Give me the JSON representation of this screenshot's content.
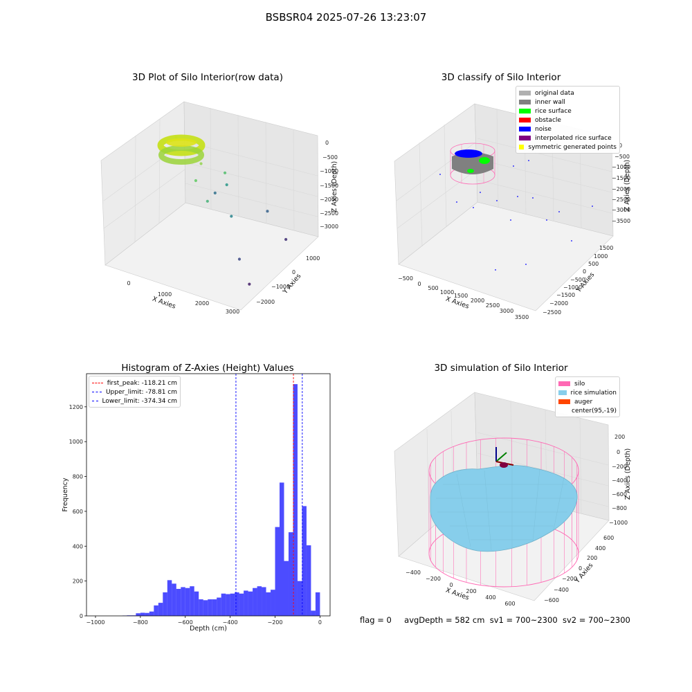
{
  "suptitle": "BSBSR04 2025-07-26 13:23:07",
  "panels": {
    "raw": {
      "title": "3D Plot of Silo Interior(row data)",
      "xlabel": "X Axies",
      "ylabel": "Y Axies",
      "zlabel": "Z Axies (Depth)",
      "xticks": [
        "0",
        "1000",
        "2000",
        "3000"
      ],
      "yticks": [
        "1000",
        "0",
        "−1000",
        "−2000"
      ],
      "zticks": [
        "0",
        "−500",
        "−1000",
        "−1500",
        "−2000",
        "−2500",
        "−3000"
      ]
    },
    "classify": {
      "title": "3D classify of Silo Interior",
      "xlabel": "X Axies",
      "ylabel": "Y Axies",
      "zlabel": "Z Axies (Depth)",
      "xticks": [
        "−500",
        "0",
        "500",
        "1000",
        "1500",
        "2000",
        "2500",
        "3000",
        "3500"
      ],
      "yticks": [
        "1500",
        "1000",
        "500",
        "0",
        "−500",
        "−1000",
        "−1500",
        "−2000",
        "−2500"
      ],
      "zticks": [
        "0",
        "−500",
        "−1000",
        "−1500",
        "−2000",
        "−2500",
        "−3000",
        "−3500"
      ],
      "legend": [
        {
          "label": "original data",
          "color": "#b0b0b0"
        },
        {
          "label": "inner wall",
          "color": "#808080"
        },
        {
          "label": "rice surface",
          "color": "#00ff00"
        },
        {
          "label": "obstacle",
          "color": "#ff0000"
        },
        {
          "label": "noise",
          "color": "#0000ff"
        },
        {
          "label": "interpolated rice surface",
          "color": "#800080"
        },
        {
          "label": "symmetric generated points",
          "color": "#ffff00"
        }
      ]
    },
    "simulation": {
      "title": "3D simulation of Silo Interior",
      "xlabel": "X Axies",
      "ylabel": "Y Axies",
      "zlabel": "Z Axies (Depth)",
      "xticks": [
        "−400",
        "−200",
        "0",
        "200",
        "400",
        "600"
      ],
      "yticks": [
        "600",
        "400",
        "200",
        "0",
        "−200",
        "−400",
        "−600"
      ],
      "zticks": [
        "200",
        "0",
        "−200",
        "−400",
        "−600",
        "−800",
        "−1000"
      ],
      "legend": [
        {
          "label": "silo",
          "color": "#ff69b4"
        },
        {
          "label": "rice simulation",
          "color": "#87ceeb"
        },
        {
          "label": "auger",
          "color": "#ff4500"
        },
        {
          "label": "center(95,-19)",
          "color": "#ffffff"
        }
      ]
    },
    "histogram": {
      "title": "Histogram of Z-Axies (Height) Values"
    }
  },
  "footer": {
    "flag": "flag = 0",
    "avg": "avgDepth = 582 cm",
    "sv1": "sv1 = 700~2300",
    "sv2": "sv2 = 700~2300"
  },
  "chart_data": [
    {
      "type": "histogram",
      "title": "Histogram of Z-Axies (Height) Values",
      "xlabel": "Depth (cm)",
      "ylabel": "Frequency",
      "xlim": [
        -1040,
        45
      ],
      "ylim": [
        0,
        1390
      ],
      "xticks": [
        -1000,
        -800,
        -600,
        -400,
        -200,
        0
      ],
      "yticks": [
        0,
        200,
        400,
        600,
        800,
        1000,
        1200
      ],
      "bin_width": 20,
      "bar_color": "#0000ff",
      "bins": [
        {
          "x": -860,
          "y": 2
        },
        {
          "x": -840,
          "y": 3
        },
        {
          "x": -820,
          "y": 3
        },
        {
          "x": -800,
          "y": 15
        },
        {
          "x": -780,
          "y": 18
        },
        {
          "x": -760,
          "y": 17
        },
        {
          "x": -740,
          "y": 25
        },
        {
          "x": -720,
          "y": 60
        },
        {
          "x": -700,
          "y": 75
        },
        {
          "x": -680,
          "y": 135
        },
        {
          "x": -660,
          "y": 205
        },
        {
          "x": -640,
          "y": 185
        },
        {
          "x": -620,
          "y": 155
        },
        {
          "x": -600,
          "y": 165
        },
        {
          "x": -580,
          "y": 160
        },
        {
          "x": -560,
          "y": 170
        },
        {
          "x": -540,
          "y": 140
        },
        {
          "x": -520,
          "y": 95
        },
        {
          "x": -500,
          "y": 90
        },
        {
          "x": -480,
          "y": 95
        },
        {
          "x": -460,
          "y": 95
        },
        {
          "x": -440,
          "y": 105
        },
        {
          "x": -420,
          "y": 128
        },
        {
          "x": -400,
          "y": 125
        },
        {
          "x": -380,
          "y": 128
        },
        {
          "x": -360,
          "y": 135
        },
        {
          "x": -340,
          "y": 128
        },
        {
          "x": -320,
          "y": 145
        },
        {
          "x": -300,
          "y": 140
        },
        {
          "x": -280,
          "y": 160
        },
        {
          "x": -260,
          "y": 170
        },
        {
          "x": -240,
          "y": 165
        },
        {
          "x": -220,
          "y": 135
        },
        {
          "x": -200,
          "y": 150
        },
        {
          "x": -180,
          "y": 510
        },
        {
          "x": -160,
          "y": 765
        },
        {
          "x": -140,
          "y": 315
        },
        {
          "x": -120,
          "y": 480
        },
        {
          "x": -100,
          "y": 1330
        },
        {
          "x": -80,
          "y": 200
        },
        {
          "x": -60,
          "y": 630
        },
        {
          "x": -40,
          "y": 405
        },
        {
          "x": -20,
          "y": 30
        },
        {
          "x": 0,
          "y": 135
        }
      ],
      "vlines": [
        {
          "label": "first_peak: -118.21 cm",
          "x": -118.21,
          "color": "#ff0000"
        },
        {
          "label": "Upper_limit: -78.81 cm",
          "x": -78.81,
          "color": "#0000ff"
        },
        {
          "label": "Lower_limit: -374.34 cm",
          "x": -374.34,
          "color": "#0000ff"
        }
      ],
      "legend_position": "top-left"
    },
    {
      "type": "scatter",
      "title": "3D Plot of Silo Interior(row data)",
      "note_type": "3d-scatter",
      "xlabel": "X Axies",
      "ylabel": "Y Axies",
      "zlabel": "Z Axies (Depth)",
      "xlim": [
        -500,
        3600
      ],
      "ylim": [
        -2500,
        1700
      ],
      "zlim": [
        -3500,
        100
      ],
      "colormap": "viridis",
      "points": [
        {
          "x": 80,
          "y": 150,
          "z": -200
        },
        {
          "x": 1100,
          "y": -400,
          "z": -500
        },
        {
          "x": 1200,
          "y": -900,
          "z": -800
        },
        {
          "x": 1500,
          "y": 200,
          "z": -1000
        },
        {
          "x": 1700,
          "y": -1200,
          "z": -1200
        },
        {
          "x": 1400,
          "y": 500,
          "z": -1600
        },
        {
          "x": 2100,
          "y": -600,
          "z": -1900
        },
        {
          "x": 900,
          "y": 800,
          "z": -2200
        },
        {
          "x": 2400,
          "y": 900,
          "z": -2400
        },
        {
          "x": 2800,
          "y": -1500,
          "z": -2700
        },
        {
          "x": 3100,
          "y": 600,
          "z": -3000
        },
        {
          "x": 3300,
          "y": -1900,
          "z": -3200
        }
      ]
    }
  ]
}
